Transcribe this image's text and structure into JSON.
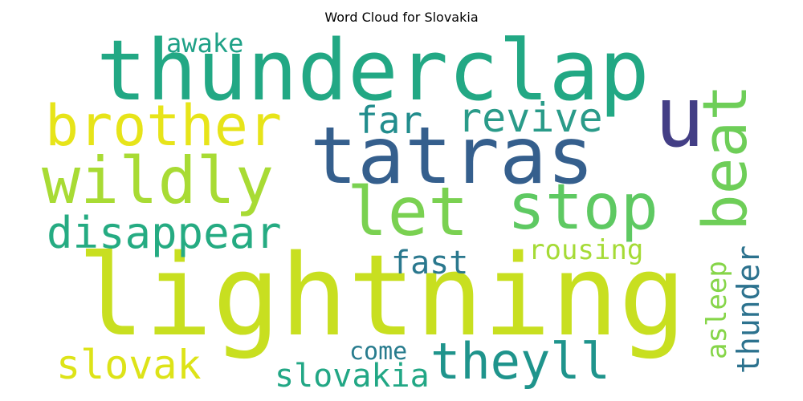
{
  "title": "Word Cloud for Slovakia",
  "words": [
    {
      "text": "lightning",
      "color": "#c8df20"
    },
    {
      "text": "thunderclap",
      "color": "#22a884"
    },
    {
      "text": "tatras",
      "color": "#355f8d"
    },
    {
      "text": "wildly",
      "color": "#a8db34"
    },
    {
      "text": "brother",
      "color": "#e7e419"
    },
    {
      "text": "let",
      "color": "#7ad151"
    },
    {
      "text": "stop",
      "color": "#5ec962"
    },
    {
      "text": "beat",
      "color": "#6ece58"
    },
    {
      "text": "u",
      "color": "#433e85"
    },
    {
      "text": "disappear",
      "color": "#25ab82"
    },
    {
      "text": "revive",
      "color": "#2a9b89"
    },
    {
      "text": "far",
      "color": "#228d8d"
    },
    {
      "text": "awake",
      "color": "#1fa187"
    },
    {
      "text": "fast",
      "color": "#2a788e"
    },
    {
      "text": "rousing",
      "color": "#a5db36"
    },
    {
      "text": "asleep",
      "color": "#86d549"
    },
    {
      "text": "thunder",
      "color": "#2c728e"
    },
    {
      "text": "slovak",
      "color": "#dde318"
    },
    {
      "text": "come",
      "color": "#287c8e"
    },
    {
      "text": "slovakia",
      "color": "#22a785"
    },
    {
      "text": "theyll",
      "color": "#1f948c"
    }
  ]
}
